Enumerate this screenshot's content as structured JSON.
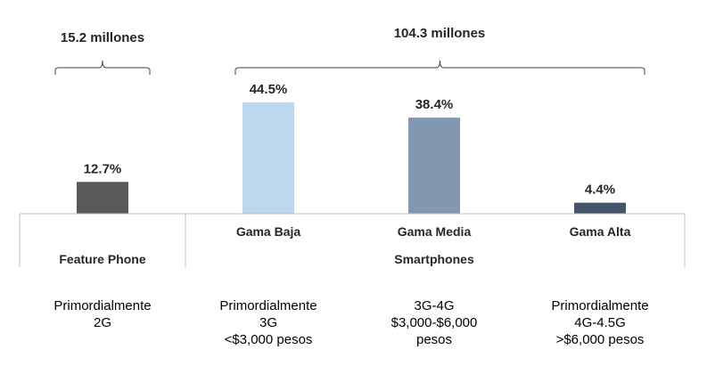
{
  "colors": {
    "feature_phone": "#595959",
    "gama_baja": "#bdd7ee",
    "gama_media": "#8497b0",
    "gama_alta": "#44546a",
    "axis": "#bfbfbf",
    "bracket": "#404040",
    "text": "#262626"
  },
  "brackets": [
    {
      "label": "15.2 millones"
    },
    {
      "label": "104.3 millones"
    }
  ],
  "groups": [
    {
      "label": "Feature Phone"
    },
    {
      "label": "Smartphones"
    }
  ],
  "footnotes": [
    [
      "Primordialmente",
      "2G"
    ],
    [
      "Primordialmente",
      "3G",
      "<$3,000 pesos"
    ],
    [
      "3G-4G",
      "$3,000-$6,000",
      "pesos"
    ],
    [
      "Primordialmente",
      "4G-4.5G",
      ">$6,000 pesos"
    ]
  ],
  "chart_data": {
    "type": "bar",
    "categories": [
      "",
      "Gama Baja",
      "Gama Media",
      "Gama Alta"
    ],
    "values": [
      12.7,
      44.5,
      38.4,
      4.4
    ],
    "data_labels": [
      "12.7%",
      "44.5%",
      "38.4%",
      "4.4%"
    ],
    "groups": [
      {
        "label": "Feature Phone",
        "categories": [
          ""
        ],
        "total": "15.2 millones"
      },
      {
        "label": "Smartphones",
        "categories": [
          "Gama Baja",
          "Gama Media",
          "Gama Alta"
        ],
        "total": "104.3 millones"
      }
    ],
    "ylim": [
      0,
      45
    ],
    "grid": false,
    "legend": "none",
    "title": "",
    "xlabel": "",
    "ylabel": ""
  }
}
